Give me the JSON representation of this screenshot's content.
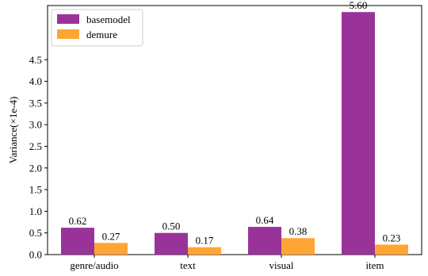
{
  "chart_data": {
    "type": "bar",
    "categories": [
      "genre/audio",
      "text",
      "visual",
      "item"
    ],
    "series": [
      {
        "name": "basemodel",
        "color": "#993399",
        "values": [
          0.62,
          0.5,
          0.64,
          5.6
        ],
        "labels": [
          "0.62",
          "0.50",
          "0.64",
          "5.60"
        ]
      },
      {
        "name": "demure",
        "color": "#FFA533",
        "values": [
          0.27,
          0.17,
          0.38,
          0.23
        ],
        "labels": [
          "0.27",
          "0.17",
          "0.38",
          "0.23"
        ]
      }
    ],
    "ylabel": "Variance(×1e-4)",
    "yticks": [
      "0.0",
      "0.5",
      "1.0",
      "1.5",
      "2.0",
      "2.5",
      "3.0",
      "3.5",
      "4.0",
      "4.5"
    ],
    "ylim": [
      0,
      5.75
    ],
    "legend_position": "top-left",
    "grid": false
  }
}
